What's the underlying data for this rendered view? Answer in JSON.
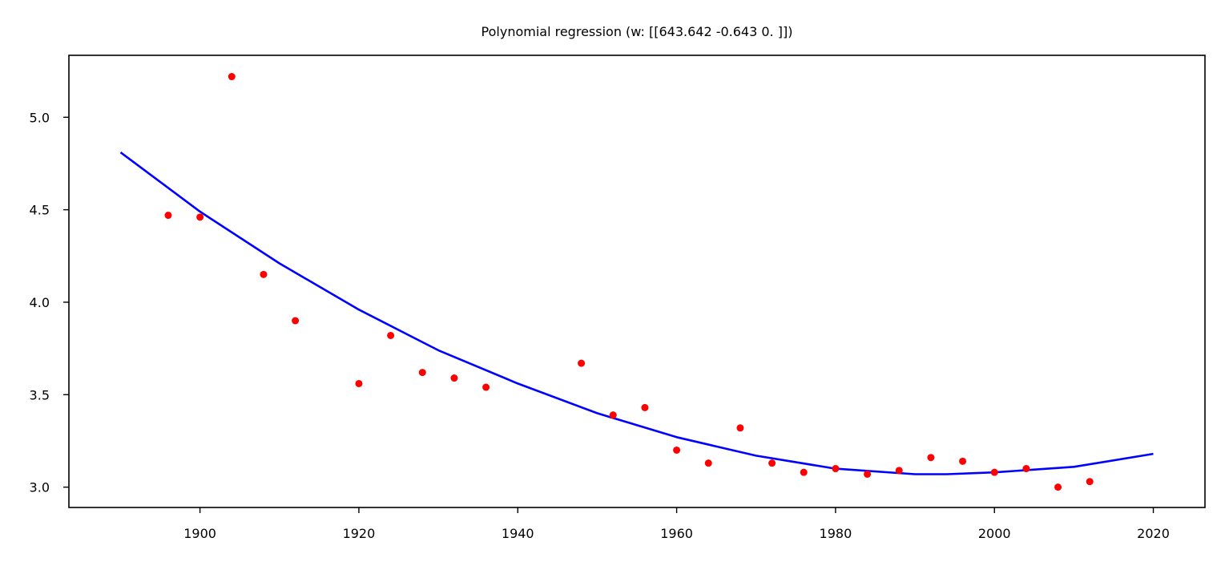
{
  "chart_data": {
    "type": "scatter",
    "title": "Polynomial regression (w: [[643.642  -0.643   0.   ]])",
    "xlabel": "",
    "ylabel": "",
    "xlim": [
      1883.5,
      2026.5
    ],
    "ylim": [
      2.89,
      5.335
    ],
    "x_ticks": [
      1900,
      1920,
      1940,
      1960,
      1980,
      2000,
      2020
    ],
    "y_ticks": [
      3.0,
      3.5,
      4.0,
      4.5,
      5.0
    ],
    "y_tick_labels": [
      "3.0",
      "3.5",
      "4.0",
      "4.5",
      "5.0"
    ],
    "grid": false,
    "colors": {
      "points": "#ff0000",
      "curve": "#0000ff"
    },
    "points": {
      "x": [
        1896,
        1900,
        1904,
        1908,
        1912,
        1920,
        1924,
        1928,
        1932,
        1936,
        1948,
        1952,
        1956,
        1960,
        1964,
        1968,
        1972,
        1976,
        1980,
        1984,
        1988,
        1992,
        1996,
        2000,
        2004,
        2008,
        2012
      ],
      "y": [
        4.47,
        4.46,
        5.22,
        4.15,
        3.9,
        3.56,
        3.82,
        3.62,
        3.59,
        3.54,
        3.67,
        3.39,
        3.43,
        3.2,
        3.13,
        3.32,
        3.13,
        3.08,
        3.1,
        3.07,
        3.09,
        3.16,
        3.14,
        3.08,
        3.1,
        3.0,
        3.03
      ]
    },
    "fit_curve": {
      "x": [
        1890,
        1900,
        1910,
        1920,
        1930,
        1940,
        1950,
        1960,
        1970,
        1980,
        1990,
        1994,
        2000,
        2010,
        2020
      ],
      "y": [
        4.81,
        4.49,
        4.21,
        3.96,
        3.74,
        3.56,
        3.4,
        3.27,
        3.17,
        3.1,
        3.07,
        3.07,
        3.08,
        3.11,
        3.18
      ]
    }
  }
}
